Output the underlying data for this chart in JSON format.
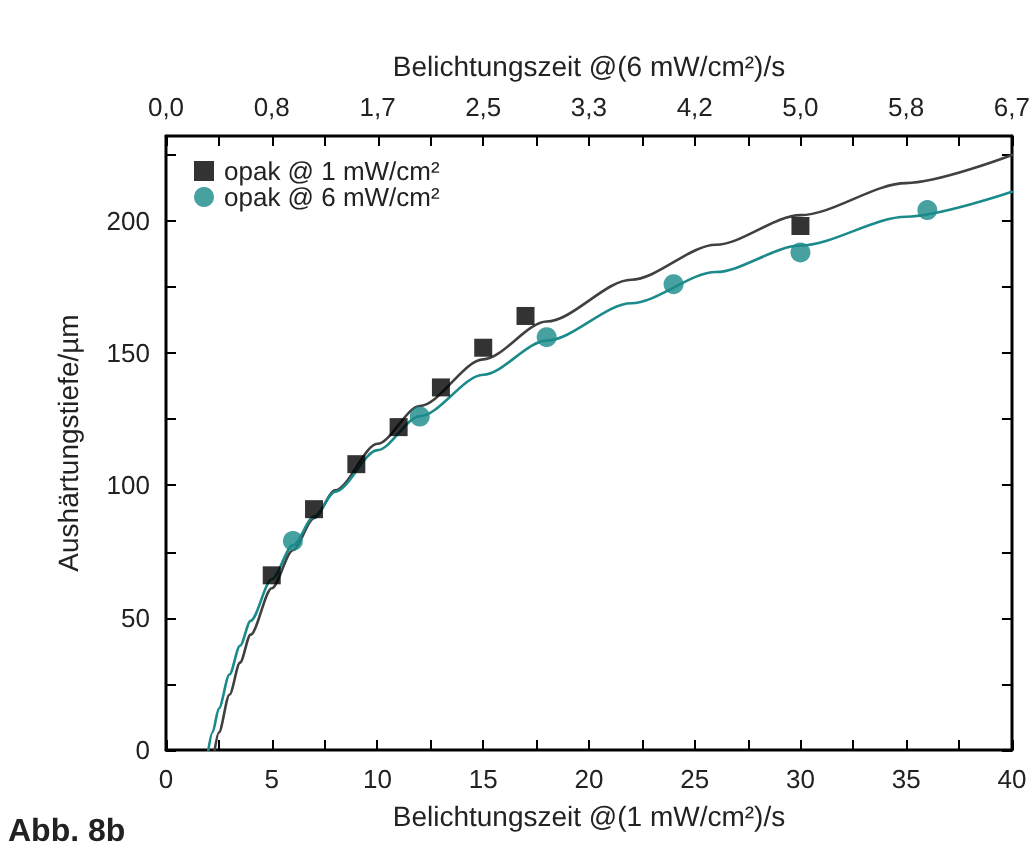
{
  "chart_data": {
    "type": "scatter",
    "xlabel": "Belichtungszeit @(1 mW/cm²)/s",
    "x2label": "Belichtungszeit @(6 mW/cm²)/s",
    "ylabel": "Aushärtungstiefe/µm",
    "annotations": [
      "Abb. 8b"
    ],
    "xlim": [
      0,
      40
    ],
    "xticks": [
      0,
      {
        "value": 2.5,
        "label": null
      },
      5,
      {
        "value": 7.5,
        "label": null
      },
      10,
      {
        "value": 12.5,
        "label": null
      },
      15,
      {
        "value": 17.5,
        "label": null
      },
      20,
      {
        "value": 22.5,
        "label": null
      },
      25,
      {
        "value": 27.5,
        "label": null
      },
      30,
      {
        "value": 32.5,
        "label": null
      },
      35,
      {
        "value": 37.5,
        "label": null
      },
      40
    ],
    "x2lim": [
      0,
      6.667
    ],
    "x2ticks": [
      {
        "value": 0,
        "label": "0,0"
      },
      {
        "value": 0.417,
        "label": null
      },
      {
        "value": 0.833,
        "label": "0,8"
      },
      {
        "value": 1.25,
        "label": null
      },
      {
        "value": 1.667,
        "label": "1,7"
      },
      {
        "value": 2.083,
        "label": null
      },
      {
        "value": 2.5,
        "label": "2,5"
      },
      {
        "value": 2.917,
        "label": null
      },
      {
        "value": 3.333,
        "label": "3,3"
      },
      {
        "value": 3.75,
        "label": null
      },
      {
        "value": 4.167,
        "label": "4,2"
      },
      {
        "value": 4.583,
        "label": null
      },
      {
        "value": 5,
        "label": "5,0"
      },
      {
        "value": 5.417,
        "label": null
      },
      {
        "value": 5.833,
        "label": "5,8"
      },
      {
        "value": 6.25,
        "label": null
      },
      {
        "value": 6.667,
        "label": "6,7"
      }
    ],
    "ylim": [
      0,
      232
    ],
    "yticks": [
      0,
      {
        "value": 25,
        "label": null
      },
      50,
      {
        "value": 75,
        "label": null
      },
      100,
      {
        "value": 125,
        "label": null
      },
      150,
      {
        "value": 175,
        "label": null
      },
      200,
      {
        "value": 225,
        "label": null
      }
    ],
    "grid": false,
    "legend": "top left",
    "series": [
      {
        "name": "opak @ 1 mW/cm²",
        "marker": "square",
        "color": "#000000",
        "x": [
          5,
          7,
          9,
          11,
          13,
          15,
          17,
          30
        ],
        "values": [
          66,
          91,
          108,
          122,
          137,
          152,
          164,
          198
        ]
      },
      {
        "name": "opak @ 6 mW/cm²",
        "marker": "circle",
        "color": "#1a8a8a",
        "x": [
          6,
          12,
          18,
          24,
          30,
          36
        ],
        "values": [
          79,
          126,
          156,
          176,
          188,
          204
        ]
      },
      {
        "type": "line",
        "marker": "none",
        "color": "#404040",
        "x": [
          2.3,
          2.5,
          3,
          3.5,
          4,
          5,
          6,
          7,
          8,
          10,
          12,
          15,
          18,
          22,
          26,
          30,
          35,
          40
        ],
        "values": [
          0,
          6.6,
          20.9,
          33,
          43.6,
          61.1,
          75.5,
          87.6,
          98.1,
          115.7,
          130,
          147.6,
          161.9,
          177.7,
          190.9,
          202.1,
          214.2,
          224.8
        ]
      },
      {
        "type": "line",
        "marker": "none",
        "color": "#1a8a8a",
        "x": [
          2,
          2.2,
          2.5,
          3,
          3.5,
          4,
          5,
          6,
          7,
          8,
          10,
          12,
          15,
          18,
          22,
          26,
          30,
          35,
          40
        ],
        "values": [
          0,
          6.7,
          15.7,
          28.5,
          39.4,
          48.8,
          64.5,
          77.3,
          88.2,
          97.6,
          113.3,
          126.1,
          141.8,
          154.7,
          168.8,
          180.6,
          190.6,
          201.5,
          210.9
        ]
      }
    ]
  }
}
